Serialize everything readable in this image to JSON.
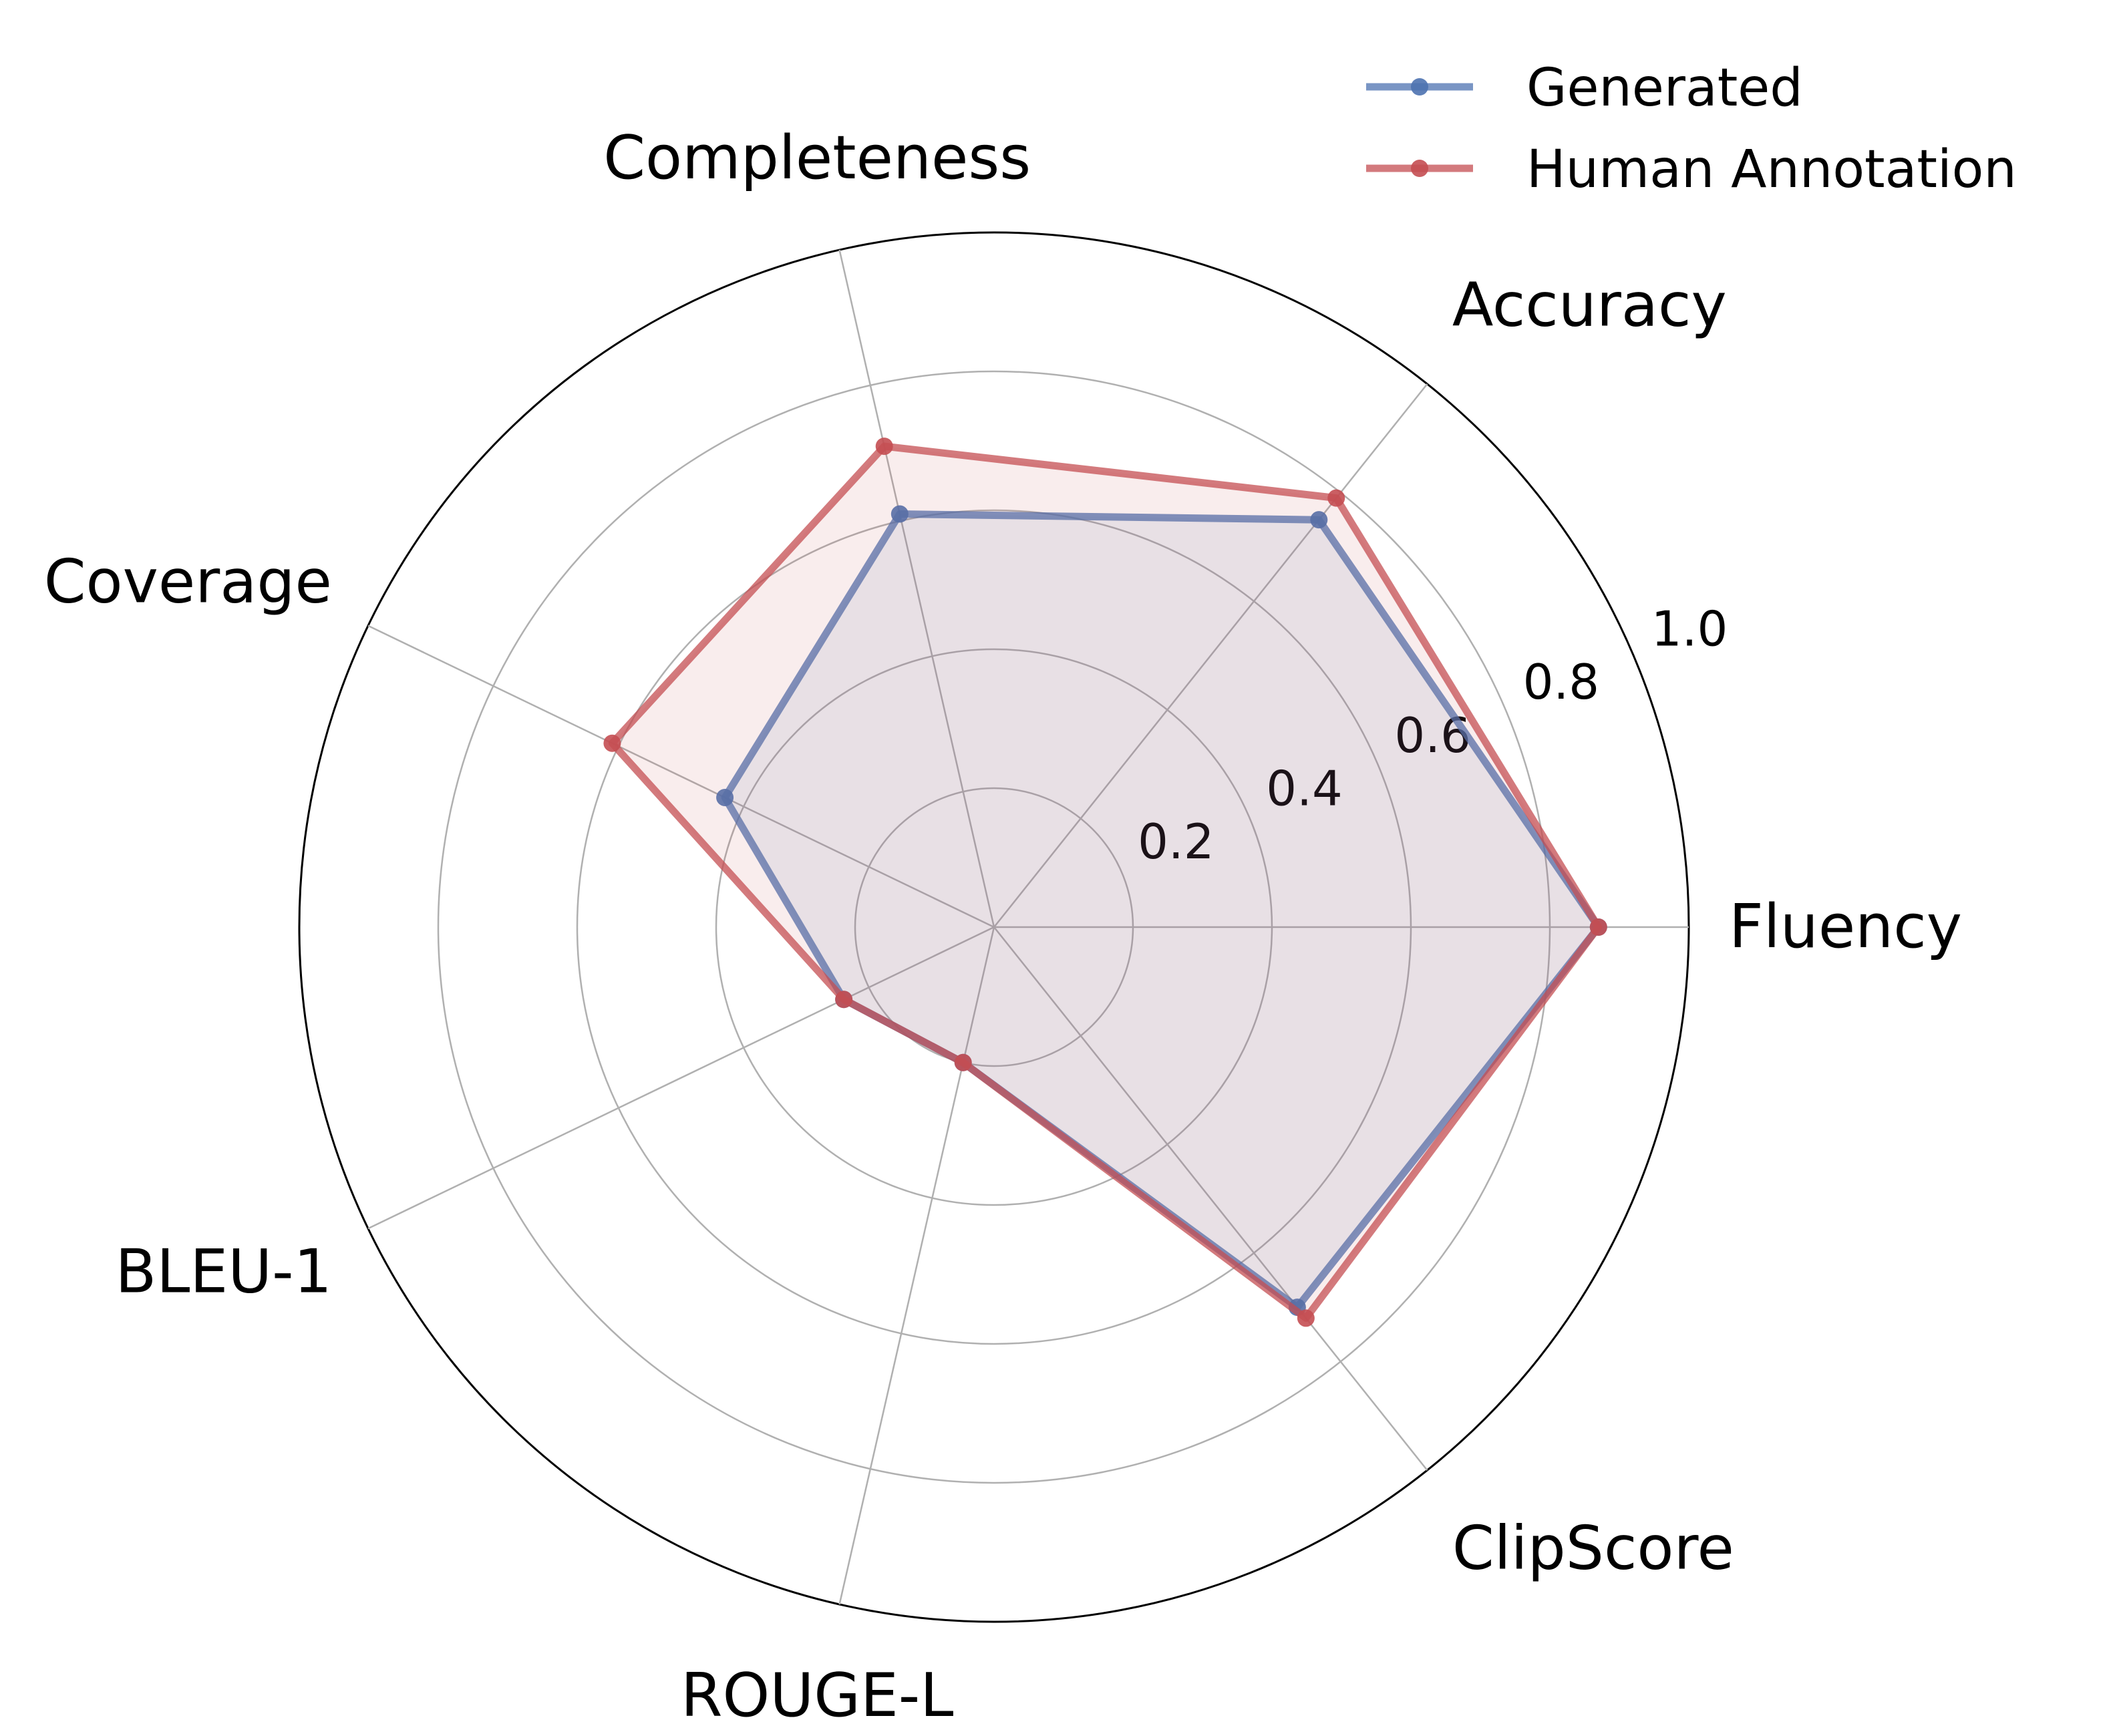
{
  "chart_data": {
    "type": "radar",
    "categories": [
      "Fluency",
      "Accuracy",
      "Completeness",
      "Coverage",
      "BLEU-1",
      "ROUGE-L",
      "ClipScore"
    ],
    "series": [
      {
        "name": "Generated",
        "color": "#4c72b0",
        "values": [
          0.87,
          0.75,
          0.61,
          0.43,
          0.24,
          0.2,
          0.7
        ]
      },
      {
        "name": "Human Annotation",
        "color": "#c44e52",
        "values": [
          0.87,
          0.79,
          0.71,
          0.61,
          0.24,
          0.2,
          0.72
        ]
      }
    ],
    "rlim": [
      0,
      1.0
    ],
    "rticks": [
      0.2,
      0.4,
      0.6,
      0.8,
      1.0
    ],
    "rtick_labels": [
      "0.2",
      "0.4",
      "0.6",
      "0.8",
      "1.0"
    ],
    "grid": true,
    "legend": "top-right"
  }
}
